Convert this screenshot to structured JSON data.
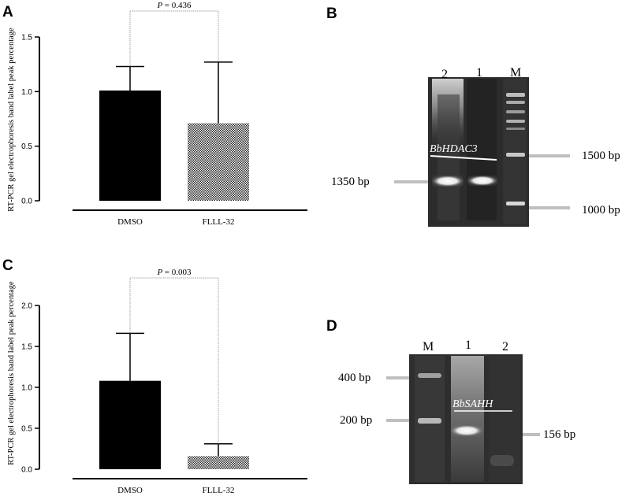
{
  "panels": {
    "A": {
      "letter": "A"
    },
    "B": {
      "letter": "B"
    },
    "C": {
      "letter": "C"
    },
    "D": {
      "letter": "D"
    }
  },
  "chart_data": [
    {
      "panel": "A",
      "type": "bar",
      "categories": [
        "DMSO",
        "FLLL-32"
      ],
      "values": [
        1.01,
        0.71
      ],
      "error_upper": [
        1.23,
        1.27
      ],
      "ylabel": "RT-PCR gel electrophoresis band label peak percentage",
      "ylim": [
        0,
        1.5
      ],
      "yticks": [
        "0.0",
        "0.5",
        "1.0",
        "1.5"
      ],
      "ytick_values": [
        0,
        0.5,
        1.0,
        1.5
      ],
      "p_label": "P",
      "p_value": "= 0.436",
      "bar_styles": [
        "solid",
        "crosshatch"
      ]
    },
    {
      "panel": "C",
      "type": "bar",
      "categories": [
        "DMSO",
        "FLLL-32"
      ],
      "values": [
        1.08,
        0.16
      ],
      "error_upper": [
        1.66,
        0.31
      ],
      "ylabel": "RT-PCR gel electrophoresis band label peak percentage",
      "ylim": [
        0,
        2.0
      ],
      "yticks": [
        "0.0",
        "0.5",
        "1.0",
        "1.5",
        "2.0"
      ],
      "ytick_values": [
        0,
        0.5,
        1.0,
        1.5,
        2.0
      ],
      "p_label": "P",
      "p_value": "= 0.003",
      "bar_styles": [
        "solid",
        "crosshatch"
      ]
    }
  ],
  "gels": {
    "B": {
      "lanes": [
        "2",
        "1",
        "M"
      ],
      "gene": "BbHDAC3",
      "left_marker": "1350 bp",
      "right_markers": [
        "1500 bp",
        "1000 bp"
      ]
    },
    "D": {
      "lanes": [
        "M",
        "1",
        "2"
      ],
      "gene": "BbSAHH",
      "left_markers": [
        "400 bp",
        "200 bp"
      ],
      "right_marker": "156 bp"
    }
  },
  "colors": {
    "bar": "#000000",
    "gel_bg": "#2a2a2a",
    "band": "#f2f2f2"
  }
}
